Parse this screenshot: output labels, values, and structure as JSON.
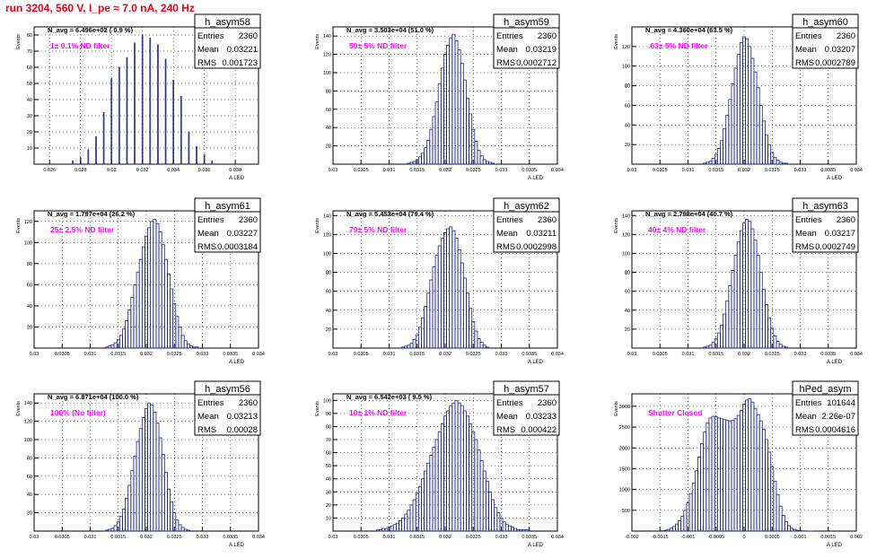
{
  "header": {
    "run_title": "run 3204,   560 V, I_pe ≈ 7.0 nA, 240 Hz"
  },
  "colors": {
    "histogram": "#1a237e",
    "title_red": "#e8001c",
    "filter_label": "#ff00ff",
    "axis": "#000000",
    "grid": "#000000"
  },
  "stat_labels": {
    "entries": "Entries",
    "mean": "Mean",
    "rms": "RMS"
  },
  "chart_data": [
    {
      "type": "bar",
      "histogram": true,
      "name": "h_asym58",
      "nav_text": "N_avg = 6.496e+02 ( 0.9 %)",
      "filter_text": "1± 0.1% ND filter",
      "xlabel": "A LED",
      "ylabel": "Events",
      "xlim": [
        0.025,
        0.0395
      ],
      "ylim": [
        0,
        85
      ],
      "xticks": [
        0.026,
        0.028,
        0.03,
        0.032,
        0.034,
        0.036,
        0.038
      ],
      "xtick_labels": [
        "0.026",
        "0.028",
        "0.03",
        "0.032",
        "0.034",
        "0.036",
        "0.038"
      ],
      "yticks": [
        10,
        20,
        30,
        40,
        50,
        60,
        70,
        80
      ],
      "stats": {
        "entries": "2360",
        "mean": "0.03221",
        "rms": "0.001723"
      },
      "centers": [
        0.0275,
        0.028,
        0.0285,
        0.029,
        0.0295,
        0.03,
        0.0305,
        0.031,
        0.0315,
        0.032,
        0.0325,
        0.033,
        0.0335,
        0.034,
        0.0345,
        0.035,
        0.0355,
        0.036,
        0.0365
      ],
      "values": [
        2,
        4,
        9,
        17,
        32,
        53,
        60,
        66,
        75,
        80,
        78,
        74,
        65,
        52,
        42,
        20,
        11,
        6,
        2
      ]
    },
    {
      "type": "bar",
      "histogram": true,
      "name": "h_asym59",
      "nav_text": "N_avg = 3.503e+04 (51.0 %)",
      "filter_text": "50± 5% ND filter",
      "xlabel": "A LED",
      "ylabel": "Events",
      "xlim": [
        0.03,
        0.034
      ],
      "ylim": [
        0,
        150
      ],
      "xticks": [
        0.03,
        0.0305,
        0.031,
        0.0315,
        0.032,
        0.0325,
        0.033,
        0.0335,
        0.034
      ],
      "xtick_labels": [
        "0.03",
        "0.0305",
        "0.031",
        "0.0315",
        "0.032",
        "0.0325",
        "0.033",
        "0.0335",
        "0.034"
      ],
      "yticks": [
        20,
        40,
        60,
        80,
        100,
        120,
        140
      ],
      "stats": {
        "entries": "2360",
        "mean": "0.03219",
        "rms": "0.0002712"
      },
      "centers": [
        0.03135,
        0.0314,
        0.03145,
        0.0315,
        0.03155,
        0.0316,
        0.03165,
        0.0317,
        0.03175,
        0.0318,
        0.03185,
        0.0319,
        0.03195,
        0.032,
        0.03205,
        0.0321,
        0.03215,
        0.0322,
        0.03225,
        0.0323,
        0.03235,
        0.0324,
        0.03245,
        0.0325,
        0.03255,
        0.0326,
        0.03265,
        0.0327,
        0.03275,
        0.0328,
        0.03285
      ],
      "values": [
        1,
        2,
        3,
        5,
        8,
        12,
        18,
        26,
        38,
        52,
        68,
        88,
        105,
        120,
        130,
        138,
        142,
        135,
        125,
        110,
        92,
        72,
        55,
        38,
        25,
        15,
        9,
        5,
        3,
        2,
        1
      ]
    },
    {
      "type": "bar",
      "histogram": true,
      "name": "h_asym60",
      "nav_text": "N_avg = 4.360e+04 (63.5 %)",
      "filter_text": ".63± 5% ND filter",
      "xlabel": "A LED",
      "ylabel": "Events",
      "xlim": [
        0.03,
        0.034
      ],
      "ylim": [
        0,
        140
      ],
      "xticks": [
        0.03,
        0.0305,
        0.031,
        0.0315,
        0.032,
        0.0325,
        0.033,
        0.0335,
        0.034
      ],
      "xtick_labels": [
        "0.03",
        "0.0305",
        "0.031",
        "0.0315",
        "0.032",
        "0.0325",
        "0.033",
        "0.0335",
        "0.034"
      ],
      "yticks": [
        20,
        40,
        60,
        80,
        100,
        120
      ],
      "stats": {
        "entries": "2360",
        "mean": "0.03207",
        "rms": "0.0002789"
      },
      "centers": [
        0.0313,
        0.03135,
        0.0314,
        0.03145,
        0.0315,
        0.03155,
        0.0316,
        0.03165,
        0.0317,
        0.03175,
        0.0318,
        0.03185,
        0.0319,
        0.03195,
        0.032,
        0.03205,
        0.0321,
        0.03215,
        0.0322,
        0.03225,
        0.0323,
        0.03235,
        0.0324,
        0.03245,
        0.0325,
        0.03255,
        0.0326,
        0.03265,
        0.0327,
        0.03275
      ],
      "values": [
        1,
        2,
        3,
        6,
        10,
        16,
        24,
        36,
        50,
        66,
        82,
        98,
        112,
        124,
        130,
        128,
        120,
        108,
        94,
        78,
        60,
        44,
        30,
        20,
        12,
        7,
        4,
        2,
        1,
        1
      ]
    },
    {
      "type": "bar",
      "histogram": true,
      "name": "h_asym61",
      "nav_text": "N_avg = 1.797e+04 (26.2 %)",
      "filter_text": "25± 2.5% ND filter",
      "xlabel": "A LED",
      "ylabel": "Events",
      "xlim": [
        0.03,
        0.034
      ],
      "ylim": [
        0,
        130
      ],
      "xticks": [
        0.03,
        0.0305,
        0.031,
        0.0315,
        0.032,
        0.0325,
        0.033,
        0.0335,
        0.034
      ],
      "xtick_labels": [
        "0.03",
        "0.0305",
        "0.031",
        "0.0315",
        "0.032",
        "0.0325",
        "0.033",
        "0.0335",
        "0.034"
      ],
      "yticks": [
        20,
        40,
        60,
        80,
        100,
        120
      ],
      "stats": {
        "entries": "2360",
        "mean": "0.03227",
        "rms": "0.0003184"
      },
      "centers": [
        0.0313,
        0.03135,
        0.0314,
        0.03145,
        0.0315,
        0.03155,
        0.0316,
        0.03165,
        0.0317,
        0.03175,
        0.0318,
        0.03185,
        0.0319,
        0.03195,
        0.032,
        0.03205,
        0.0321,
        0.03215,
        0.0322,
        0.03225,
        0.0323,
        0.03235,
        0.0324,
        0.03245,
        0.0325,
        0.03255,
        0.0326,
        0.03265,
        0.0327,
        0.03275,
        0.0328,
        0.03285,
        0.0329
      ],
      "values": [
        1,
        2,
        3,
        5,
        8,
        12,
        18,
        26,
        36,
        48,
        60,
        72,
        84,
        96,
        106,
        114,
        120,
        122,
        118,
        110,
        98,
        84,
        70,
        56,
        42,
        30,
        20,
        12,
        7,
        4,
        2,
        1,
        1
      ]
    },
    {
      "type": "bar",
      "histogram": true,
      "name": "h_asym62",
      "nav_text": "N_avg = 5.453e+04 (79.4 %)",
      "filter_text": "79± 5% ND filter",
      "xlabel": "A LED",
      "ylabel": "Events",
      "xlim": [
        0.03,
        0.034
      ],
      "ylim": [
        0,
        145
      ],
      "xticks": [
        0.03,
        0.0305,
        0.031,
        0.0315,
        0.032,
        0.0325,
        0.033,
        0.0335,
        0.034
      ],
      "xtick_labels": [
        "0.03",
        "0.0305",
        "0.031",
        "0.0315",
        "0.032",
        "0.0325",
        "0.033",
        "0.0335",
        "0.034"
      ],
      "yticks": [
        20,
        40,
        60,
        80,
        100,
        120,
        140
      ],
      "stats": {
        "entries": "2360",
        "mean": "0.03211",
        "rms": "0.0002998"
      },
      "centers": [
        0.03125,
        0.0313,
        0.03135,
        0.0314,
        0.03145,
        0.0315,
        0.03155,
        0.0316,
        0.03165,
        0.0317,
        0.03175,
        0.0318,
        0.03185,
        0.0319,
        0.03195,
        0.032,
        0.03205,
        0.0321,
        0.03215,
        0.0322,
        0.03225,
        0.0323,
        0.03235,
        0.0324,
        0.03245,
        0.0325,
        0.03255,
        0.0326,
        0.03265,
        0.0327,
        0.03275
      ],
      "values": [
        1,
        2,
        3,
        5,
        9,
        14,
        22,
        32,
        44,
        58,
        72,
        86,
        98,
        108,
        116,
        122,
        126,
        128,
        124,
        116,
        104,
        90,
        74,
        58,
        42,
        28,
        18,
        10,
        6,
        3,
        1
      ]
    },
    {
      "type": "bar",
      "histogram": true,
      "name": "h_asym63",
      "nav_text": "N_avg = 2.798e+04 (40.7 %)",
      "filter_text": "40± 4% ND filter",
      "xlabel": "A LED",
      "ylabel": "Events",
      "xlim": [
        0.03,
        0.034
      ],
      "ylim": [
        0,
        145
      ],
      "xticks": [
        0.03,
        0.0305,
        0.031,
        0.0315,
        0.032,
        0.0325,
        0.033,
        0.0335,
        0.034
      ],
      "xtick_labels": [
        "0.03",
        "0.0305",
        "0.031",
        "0.0315",
        "0.032",
        "0.0325",
        "0.033",
        "0.0335",
        "0.034"
      ],
      "yticks": [
        20,
        40,
        60,
        80,
        100,
        120,
        140
      ],
      "stats": {
        "entries": "2360",
        "mean": "0.03217",
        "rms": "0.0002749"
      },
      "centers": [
        0.0313,
        0.03135,
        0.0314,
        0.03145,
        0.0315,
        0.03155,
        0.0316,
        0.03165,
        0.0317,
        0.03175,
        0.0318,
        0.03185,
        0.0319,
        0.03195,
        0.032,
        0.03205,
        0.0321,
        0.03215,
        0.0322,
        0.03225,
        0.0323,
        0.03235,
        0.0324,
        0.03245,
        0.0325,
        0.03255,
        0.0326,
        0.03265,
        0.0327,
        0.03275
      ],
      "values": [
        1,
        2,
        3,
        6,
        10,
        16,
        24,
        36,
        50,
        66,
        82,
        98,
        112,
        124,
        132,
        136,
        134,
        126,
        114,
        98,
        80,
        62,
        46,
        32,
        21,
        13,
        7,
        4,
        2,
        1
      ]
    },
    {
      "type": "bar",
      "histogram": true,
      "name": "h_asym56",
      "nav_text": "N_avg = 6.871e+04 (100.0 %)",
      "filter_text": "100% (No filter)",
      "xlabel": "A LED",
      "ylabel": "Events",
      "xlim": [
        0.03,
        0.034
      ],
      "ylim": [
        0,
        150
      ],
      "xticks": [
        0.03,
        0.0305,
        0.031,
        0.0315,
        0.032,
        0.0325,
        0.033,
        0.0335,
        0.034
      ],
      "xtick_labels": [
        "0.03",
        "0.0305",
        "0.031",
        "0.0315",
        "0.032",
        "0.0325",
        "0.033",
        "0.0335",
        "0.034"
      ],
      "yticks": [
        20,
        40,
        60,
        80,
        100,
        120,
        140
      ],
      "stats": {
        "entries": "2360",
        "mean": "0.03213",
        "rms": "0.00028"
      },
      "centers": [
        0.0313,
        0.03135,
        0.0314,
        0.03145,
        0.0315,
        0.03155,
        0.0316,
        0.03165,
        0.0317,
        0.03175,
        0.0318,
        0.03185,
        0.0319,
        0.03195,
        0.032,
        0.03205,
        0.0321,
        0.03215,
        0.0322,
        0.03225,
        0.0323,
        0.03235,
        0.0324,
        0.03245,
        0.0325,
        0.03255,
        0.0326,
        0.03265,
        0.0327,
        0.03275
      ],
      "values": [
        1,
        2,
        3,
        6,
        10,
        16,
        24,
        36,
        50,
        66,
        82,
        98,
        112,
        124,
        134,
        140,
        138,
        130,
        118,
        102,
        84,
        64,
        46,
        32,
        20,
        12,
        7,
        4,
        2,
        1
      ]
    },
    {
      "type": "bar",
      "histogram": true,
      "name": "h_asym57",
      "nav_text": "N_avg = 6.542e+03 ( 9.5 %)",
      "filter_text": "10± 1% ND filter",
      "xlabel": "A LED",
      "ylabel": "Events",
      "xlim": [
        0.03,
        0.034
      ],
      "ylim": [
        0,
        105
      ],
      "xticks": [
        0.03,
        0.0305,
        0.031,
        0.0315,
        0.032,
        0.0325,
        0.033,
        0.0335,
        0.034
      ],
      "xtick_labels": [
        "0.03",
        "0.0305",
        "0.031",
        "0.0315",
        "0.032",
        "0.0325",
        "0.033",
        "0.0335",
        "0.034"
      ],
      "yticks": [
        10,
        20,
        30,
        40,
        50,
        60,
        70,
        80,
        90,
        100
      ],
      "stats": {
        "entries": "2360",
        "mean": "0.03233",
        "rms": "0.000422"
      },
      "centers": [
        0.0308,
        0.03085,
        0.0309,
        0.03095,
        0.031,
        0.03105,
        0.0311,
        0.03115,
        0.0312,
        0.03125,
        0.0313,
        0.03135,
        0.0314,
        0.03145,
        0.0315,
        0.03155,
        0.0316,
        0.03165,
        0.0317,
        0.03175,
        0.0318,
        0.03185,
        0.0319,
        0.03195,
        0.032,
        0.03205,
        0.0321,
        0.03215,
        0.0322,
        0.03225,
        0.0323,
        0.03235,
        0.0324,
        0.03245,
        0.0325,
        0.03255,
        0.0326,
        0.03265,
        0.0327,
        0.03275,
        0.0328,
        0.03285,
        0.0329,
        0.03295,
        0.033,
        0.03305,
        0.0331,
        0.03315,
        0.0332,
        0.03325,
        0.0333,
        0.03335,
        0.0334,
        0.03345
      ],
      "values": [
        1,
        1,
        2,
        2,
        3,
        4,
        5,
        6,
        8,
        10,
        13,
        16,
        20,
        24,
        29,
        34,
        40,
        46,
        52,
        58,
        64,
        70,
        76,
        82,
        88,
        92,
        96,
        98,
        100,
        98,
        96,
        92,
        88,
        82,
        76,
        70,
        62,
        54,
        46,
        38,
        30,
        24,
        18,
        14,
        10,
        7,
        5,
        4,
        3,
        2,
        1,
        1,
        1,
        1
      ]
    },
    {
      "type": "bar",
      "histogram": true,
      "name": "hPed_asym",
      "nav_text": "",
      "filter_text": "Shutter Closed",
      "xlabel": "A LED",
      "ylabel": "Events",
      "xlim": [
        -0.002,
        0.002
      ],
      "ylim": [
        0,
        3300
      ],
      "xticks": [
        -0.002,
        -0.0015,
        -0.001,
        -0.0005,
        0,
        0.0005,
        0.001,
        0.0015,
        0.002
      ],
      "xtick_labels": [
        "-0.002",
        "-0.0015",
        "-0.001",
        "-0.0005",
        "0",
        "0.0005",
        "0.001",
        "0.0015",
        "0.002"
      ],
      "yticks": [
        500,
        1000,
        1500,
        2000,
        2500,
        3000
      ],
      "stats": {
        "entries": "101644",
        "mean": "2.26e-07",
        "rms": "0.0004616"
      },
      "centers": [
        -0.00145,
        -0.0014,
        -0.00135,
        -0.0013,
        -0.00125,
        -0.0012,
        -0.00115,
        -0.0011,
        -0.00105,
        -0.001,
        -0.00095,
        -0.0009,
        -0.00085,
        -0.0008,
        -0.00075,
        -0.0007,
        -0.00065,
        -0.0006,
        -0.00055,
        -0.0005,
        -0.00045,
        -0.0004,
        -0.00035,
        -0.0003,
        -0.00025,
        -0.0002,
        -0.00015,
        -0.0001,
        -5e-05,
        0,
        5e-05,
        0.0001,
        0.00015,
        0.0002,
        0.00025,
        0.0003,
        0.00035,
        0.0004,
        0.00045,
        0.0005,
        0.00055,
        0.0006,
        0.00065,
        0.0007,
        0.00075,
        0.0008,
        0.00085,
        0.0009,
        0.00095,
        0.001,
        0.00105,
        0.0011,
        0.00115,
        0.0012
      ],
      "values": [
        10,
        20,
        40,
        70,
        110,
        170,
        250,
        360,
        500,
        680,
        900,
        1150,
        1450,
        1780,
        2100,
        2380,
        2600,
        2720,
        2760,
        2750,
        2720,
        2700,
        2680,
        2660,
        2650,
        2660,
        2700,
        2780,
        2900,
        3050,
        3150,
        3180,
        3100,
        2950,
        2800,
        2650,
        2450,
        2200,
        1900,
        1550,
        1200,
        880,
        600,
        380,
        230,
        130,
        70,
        40,
        20,
        10,
        6,
        3,
        1,
        1
      ]
    }
  ]
}
